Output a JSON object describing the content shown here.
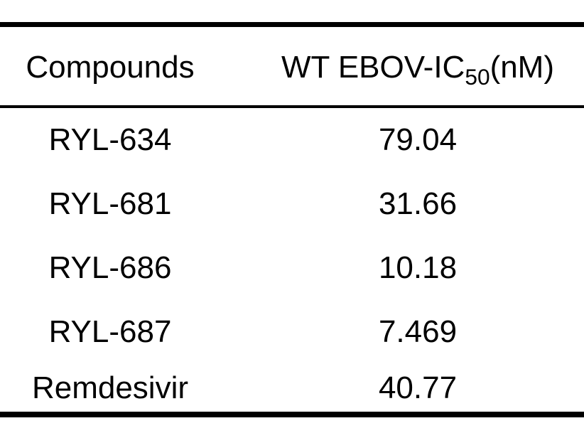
{
  "figure": {
    "background_color": "#ffffff",
    "text_color": "#000000",
    "rule_color": "#000000"
  },
  "table": {
    "header": {
      "col1": "Compounds",
      "col2_prefix": "WT EBOV-IC",
      "col2_subscript": "50",
      "col2_suffix": "(nM)"
    },
    "rows": [
      {
        "compound": "RYL-634",
        "ic50": "79.04"
      },
      {
        "compound": "RYL-681",
        "ic50": "31.66"
      },
      {
        "compound": "RYL-686",
        "ic50": "10.18"
      },
      {
        "compound": "RYL-687",
        "ic50": "7.469"
      },
      {
        "compound": "Remdesivir",
        "ic50": "40.77"
      }
    ]
  },
  "chart_data": {
    "type": "table",
    "columns": [
      "Compounds",
      "WT EBOV-IC50(nM)"
    ],
    "rows": [
      [
        "RYL-634",
        79.04
      ],
      [
        "RYL-681",
        31.66
      ],
      [
        "RYL-686",
        10.18
      ],
      [
        "RYL-687",
        7.469
      ],
      [
        "Remdesivir",
        40.77
      ]
    ]
  }
}
